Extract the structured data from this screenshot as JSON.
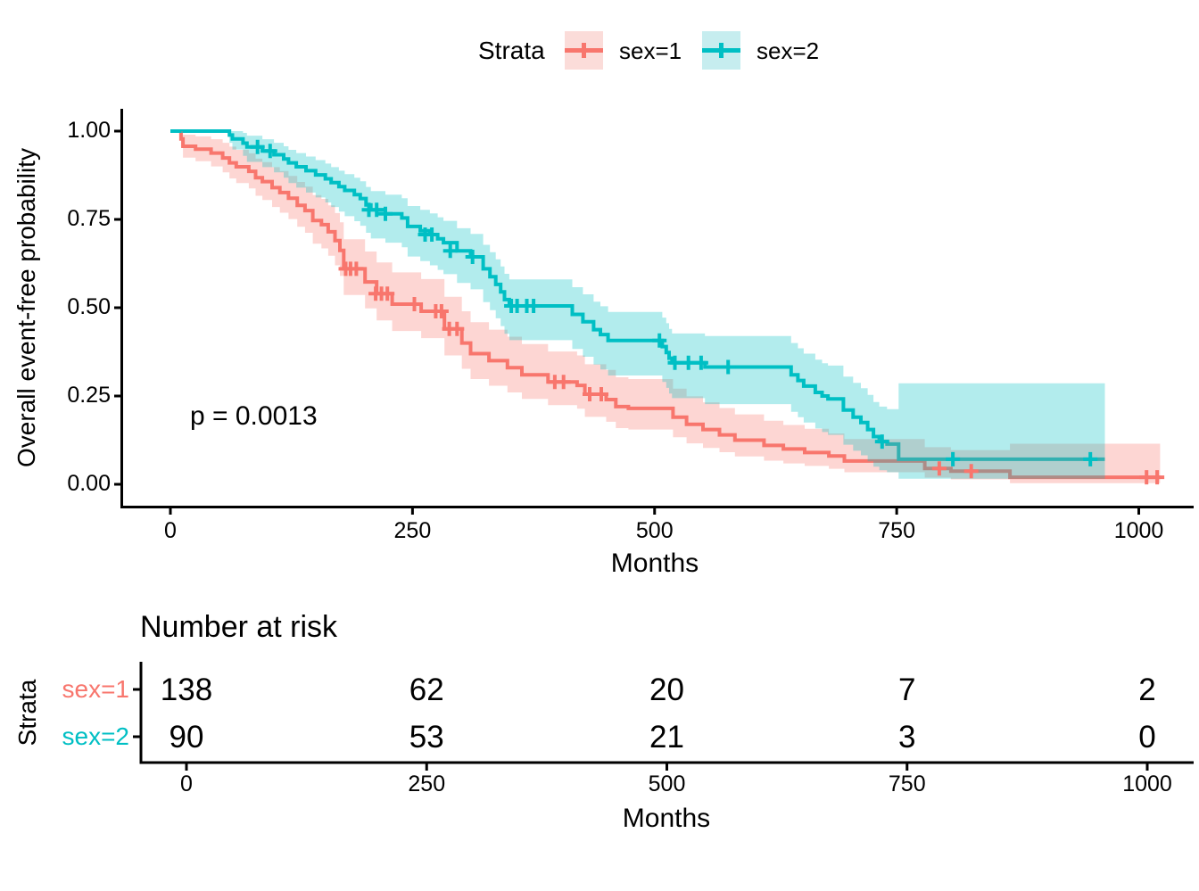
{
  "legend": {
    "title": "Strata",
    "items": [
      {
        "label": "sex=1",
        "color": "#F8766D",
        "swatch_fill": "#FBDCD9"
      },
      {
        "label": "sex=2",
        "color": "#00BFC4",
        "swatch_fill": "#C6EDEF"
      }
    ]
  },
  "main_plot": {
    "y_axis": {
      "title": "Overall event-free probability",
      "tick_labels": [
        "1.00",
        "0.75",
        "0.50",
        "0.25",
        "0.00"
      ],
      "tick_values": [
        1,
        0.75,
        0.5,
        0.25,
        0
      ]
    },
    "x_axis": {
      "title": "Months",
      "tick_labels": [
        "0",
        "250",
        "500",
        "750",
        "1000"
      ],
      "tick_values": [
        0,
        250,
        500,
        750,
        1000
      ]
    },
    "p_label": "p = 0.0013"
  },
  "chart_data": {
    "type": "line",
    "subtype": "kaplan-meier-step-with-confidence-bands",
    "title": "",
    "xlabel": "Months",
    "ylabel": "Overall event-free probability",
    "xlim": [
      0,
      1055
    ],
    "ylim": [
      0,
      1
    ],
    "x_ticks": [
      0,
      250,
      500,
      750,
      1000
    ],
    "y_ticks": [
      0,
      0.25,
      0.5,
      0.75,
      1
    ],
    "legend_title": "Strata",
    "legend_position": "top",
    "grid": false,
    "p_value_annotation": "p = 0.0013",
    "band_alpha": 0.3,
    "series": [
      {
        "name": "sex=1",
        "color": "#F8766D",
        "n_at_start": 138,
        "end_time": 1022,
        "steps": [
          [
            0,
            1,
            1,
            1
          ],
          [
            11,
            0.978,
            0.955,
            1
          ],
          [
            13,
            0.957,
            0.925,
            0.99
          ],
          [
            26,
            0.949,
            0.915,
            0.985
          ],
          [
            42,
            0.938,
            0.9,
            0.977
          ],
          [
            54,
            0.924,
            0.883,
            0.967
          ],
          [
            61,
            0.91,
            0.866,
            0.956
          ],
          [
            68,
            0.899,
            0.853,
            0.947
          ],
          [
            81,
            0.886,
            0.838,
            0.937
          ],
          [
            88,
            0.868,
            0.817,
            0.922
          ],
          [
            95,
            0.857,
            0.805,
            0.912
          ],
          [
            105,
            0.84,
            0.785,
            0.898
          ],
          [
            113,
            0.826,
            0.769,
            0.887
          ],
          [
            122,
            0.81,
            0.751,
            0.873
          ],
          [
            131,
            0.79,
            0.729,
            0.856
          ],
          [
            139,
            0.775,
            0.712,
            0.843
          ],
          [
            147,
            0.747,
            0.681,
            0.819
          ],
          [
            156,
            0.735,
            0.668,
            0.808
          ],
          [
            163,
            0.715,
            0.647,
            0.79
          ],
          [
            170,
            0.69,
            0.62,
            0.768
          ],
          [
            175,
            0.662,
            0.59,
            0.742
          ],
          [
            179,
            0.61,
            0.536,
            0.694
          ],
          [
            201,
            0.573,
            0.498,
            0.659
          ],
          [
            213,
            0.54,
            0.464,
            0.628
          ],
          [
            229,
            0.51,
            0.434,
            0.6
          ],
          [
            259,
            0.49,
            0.414,
            0.581
          ],
          [
            283,
            0.44,
            0.365,
            0.531
          ],
          [
            301,
            0.4,
            0.327,
            0.49
          ],
          [
            310,
            0.37,
            0.298,
            0.459
          ],
          [
            329,
            0.35,
            0.279,
            0.438
          ],
          [
            348,
            0.33,
            0.26,
            0.418
          ],
          [
            363,
            0.31,
            0.242,
            0.397
          ],
          [
            390,
            0.29,
            0.224,
            0.376
          ],
          [
            420,
            0.28,
            0.214,
            0.365
          ],
          [
            428,
            0.255,
            0.191,
            0.34
          ],
          [
            450,
            0.24,
            0.177,
            0.324
          ],
          [
            460,
            0.22,
            0.159,
            0.303
          ],
          [
            473,
            0.215,
            0.155,
            0.298
          ],
          [
            519,
            0.19,
            0.133,
            0.271
          ],
          [
            533,
            0.17,
            0.116,
            0.249
          ],
          [
            550,
            0.155,
            0.103,
            0.232
          ],
          [
            567,
            0.14,
            0.091,
            0.216
          ],
          [
            583,
            0.125,
            0.079,
            0.198
          ],
          [
            613,
            0.11,
            0.067,
            0.18
          ],
          [
            633,
            0.1,
            0.059,
            0.168
          ],
          [
            655,
            0.09,
            0.052,
            0.157
          ],
          [
            680,
            0.08,
            0.044,
            0.144
          ],
          [
            696,
            0.066,
            0.034,
            0.128
          ],
          [
            779,
            0.045,
            0.019,
            0.105
          ],
          [
            806,
            0.037,
            0.014,
            0.097
          ],
          [
            867,
            0.02,
            0.003,
            0.115
          ]
        ],
        "censor_marks": [
          [
            181,
            0.61
          ],
          [
            186,
            0.61
          ],
          [
            192,
            0.61
          ],
          [
            212,
            0.54
          ],
          [
            218,
            0.54
          ],
          [
            224,
            0.54
          ],
          [
            252,
            0.51
          ],
          [
            274,
            0.49
          ],
          [
            280,
            0.49
          ],
          [
            288,
            0.44
          ],
          [
            296,
            0.44
          ],
          [
            397,
            0.29
          ],
          [
            406,
            0.29
          ],
          [
            433,
            0.255
          ],
          [
            445,
            0.255
          ],
          [
            794,
            0.045
          ],
          [
            827,
            0.037
          ],
          [
            1008,
            0.02
          ],
          [
            1019,
            0.02
          ]
        ]
      },
      {
        "name": "sex=2",
        "color": "#00BFC4",
        "n_at_start": 90,
        "end_time": 965,
        "steps": [
          [
            0,
            1,
            1,
            1
          ],
          [
            61,
            0.989,
            0.967,
            1
          ],
          [
            64,
            0.978,
            0.948,
            1
          ],
          [
            75,
            0.966,
            0.93,
            0.995
          ],
          [
            79,
            0.955,
            0.913,
            0.987
          ],
          [
            95,
            0.944,
            0.898,
            0.977
          ],
          [
            107,
            0.933,
            0.883,
            0.967
          ],
          [
            117,
            0.921,
            0.868,
            0.957
          ],
          [
            122,
            0.91,
            0.853,
            0.947
          ],
          [
            130,
            0.899,
            0.84,
            0.938
          ],
          [
            140,
            0.888,
            0.826,
            0.928
          ],
          [
            150,
            0.876,
            0.812,
            0.918
          ],
          [
            160,
            0.865,
            0.798,
            0.908
          ],
          [
            166,
            0.854,
            0.785,
            0.898
          ],
          [
            174,
            0.843,
            0.772,
            0.888
          ],
          [
            180,
            0.832,
            0.759,
            0.878
          ],
          [
            190,
            0.82,
            0.745,
            0.868
          ],
          [
            196,
            0.809,
            0.732,
            0.858
          ],
          [
            202,
            0.791,
            0.712,
            0.842
          ],
          [
            207,
            0.777,
            0.696,
            0.83
          ],
          [
            222,
            0.766,
            0.684,
            0.82
          ],
          [
            239,
            0.754,
            0.671,
            0.81
          ],
          [
            245,
            0.73,
            0.645,
            0.788
          ],
          [
            258,
            0.718,
            0.632,
            0.777
          ],
          [
            268,
            0.707,
            0.62,
            0.767
          ],
          [
            276,
            0.695,
            0.607,
            0.756
          ],
          [
            282,
            0.684,
            0.595,
            0.746
          ],
          [
            296,
            0.661,
            0.57,
            0.725
          ],
          [
            310,
            0.644,
            0.552,
            0.709
          ],
          [
            323,
            0.61,
            0.516,
            0.678
          ],
          [
            330,
            0.588,
            0.493,
            0.657
          ],
          [
            336,
            0.566,
            0.47,
            0.637
          ],
          [
            341,
            0.545,
            0.448,
            0.617
          ],
          [
            345,
            0.523,
            0.426,
            0.596
          ],
          [
            350,
            0.505,
            0.408,
            0.58
          ],
          [
            415,
            0.481,
            0.383,
            0.558
          ],
          [
            426,
            0.46,
            0.361,
            0.538
          ],
          [
            437,
            0.438,
            0.339,
            0.517
          ],
          [
            444,
            0.424,
            0.325,
            0.504
          ],
          [
            452,
            0.407,
            0.308,
            0.488
          ],
          [
            508,
            0.39,
            0.29,
            0.472
          ],
          [
            512,
            0.373,
            0.273,
            0.456
          ],
          [
            515,
            0.357,
            0.257,
            0.44
          ],
          [
            518,
            0.344,
            0.244,
            0.427
          ],
          [
            552,
            0.332,
            0.227,
            0.42
          ],
          [
            641,
            0.31,
            0.205,
            0.4
          ],
          [
            648,
            0.294,
            0.19,
            0.385
          ],
          [
            654,
            0.278,
            0.175,
            0.37
          ],
          [
            666,
            0.26,
            0.158,
            0.353
          ],
          [
            673,
            0.25,
            0.148,
            0.343
          ],
          [
            679,
            0.242,
            0.14,
            0.336
          ],
          [
            695,
            0.21,
            0.112,
            0.305
          ],
          [
            705,
            0.19,
            0.095,
            0.287
          ],
          [
            713,
            0.175,
            0.082,
            0.272
          ],
          [
            720,
            0.155,
            0.065,
            0.253
          ],
          [
            726,
            0.135,
            0.05,
            0.233
          ],
          [
            732,
            0.121,
            0.04,
            0.22
          ],
          [
            740,
            0.114,
            0.034,
            0.213
          ],
          [
            752,
            0.071,
            0.016,
            0.286
          ]
        ],
        "censor_marks": [
          [
            90,
            0.955
          ],
          [
            103,
            0.944
          ],
          [
            205,
            0.777
          ],
          [
            213,
            0.777
          ],
          [
            222,
            0.766
          ],
          [
            263,
            0.707
          ],
          [
            270,
            0.707
          ],
          [
            289,
            0.661
          ],
          [
            312,
            0.644
          ],
          [
            352,
            0.505
          ],
          [
            358,
            0.505
          ],
          [
            368,
            0.505
          ],
          [
            375,
            0.505
          ],
          [
            505,
            0.407
          ],
          [
            521,
            0.344
          ],
          [
            535,
            0.344
          ],
          [
            548,
            0.344
          ],
          [
            576,
            0.332
          ],
          [
            735,
            0.121
          ],
          [
            808,
            0.071
          ],
          [
            950,
            0.071
          ]
        ]
      }
    ]
  },
  "risk_table": {
    "title": "Number at risk",
    "axis_title": "Strata",
    "x_axis_title": "Months",
    "x_tick_labels": [
      "0",
      "250",
      "500",
      "750",
      "1000"
    ],
    "x_tick_values": [
      0,
      250,
      500,
      750,
      1000
    ],
    "rows": [
      {
        "label": "sex=1",
        "color": "#F8766D",
        "counts": [
          138,
          62,
          20,
          7,
          2
        ]
      },
      {
        "label": "sex=2",
        "color": "#00BFC4",
        "counts": [
          90,
          53,
          21,
          3,
          0
        ]
      }
    ]
  }
}
